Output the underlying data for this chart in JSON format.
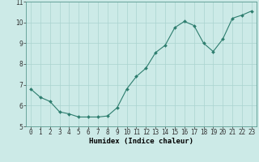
{
  "x": [
    0,
    1,
    2,
    3,
    4,
    5,
    6,
    7,
    8,
    9,
    10,
    11,
    12,
    13,
    14,
    15,
    16,
    17,
    18,
    19,
    20,
    21,
    22,
    23
  ],
  "y": [
    6.8,
    6.4,
    6.2,
    5.7,
    5.6,
    5.45,
    5.45,
    5.45,
    5.5,
    5.9,
    6.8,
    7.4,
    7.8,
    8.55,
    8.9,
    9.75,
    10.05,
    9.85,
    9.0,
    8.6,
    9.2,
    10.2,
    10.35,
    10.55
  ],
  "line_color": "#2d7d6e",
  "marker": "D",
  "marker_size": 2.0,
  "bg_color": "#cceae7",
  "grid_color": "#aad4d0",
  "xlabel": "Humidex (Indice chaleur)",
  "xlim": [
    -0.5,
    23.5
  ],
  "ylim": [
    5.0,
    11.0
  ],
  "yticks": [
    5,
    6,
    7,
    8,
    9,
    10,
    11
  ],
  "xticks": [
    0,
    1,
    2,
    3,
    4,
    5,
    6,
    7,
    8,
    9,
    10,
    11,
    12,
    13,
    14,
    15,
    16,
    17,
    18,
    19,
    20,
    21,
    22,
    23
  ],
  "tick_label_fontsize": 5.5,
  "xlabel_fontsize": 6.5,
  "spine_color": "#5a9a90"
}
